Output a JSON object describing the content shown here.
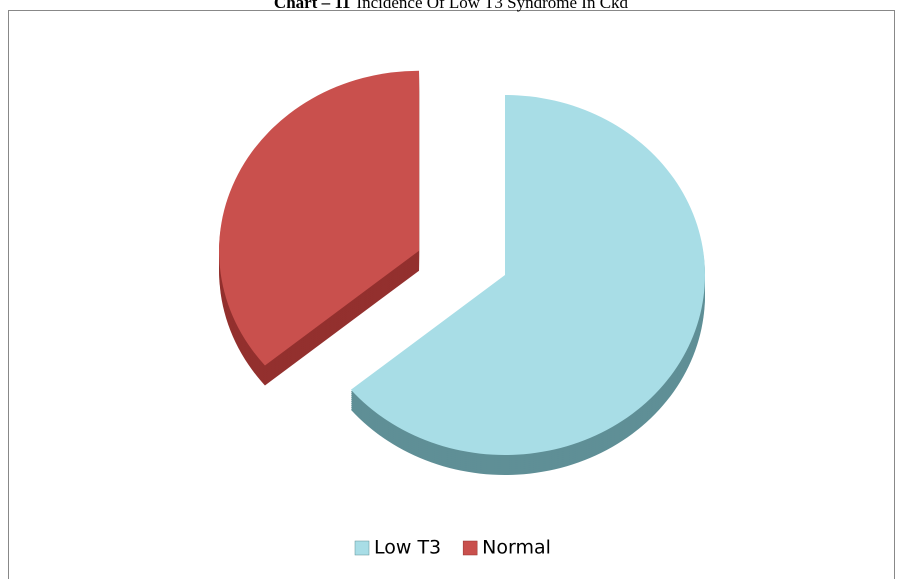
{
  "chart_data": {
    "type": "pie",
    "chart_number": "Chart – 11",
    "title": "Incidence Of Low T3 Syndrome In Ckd",
    "categories": [
      "Low T3",
      "Normal"
    ],
    "values": [
      64,
      36
    ],
    "colors": [
      "#a8dde6",
      "#c9504d"
    ],
    "side_colors": [
      "#5f8f96",
      "#93302e"
    ],
    "legend": "bottom"
  }
}
